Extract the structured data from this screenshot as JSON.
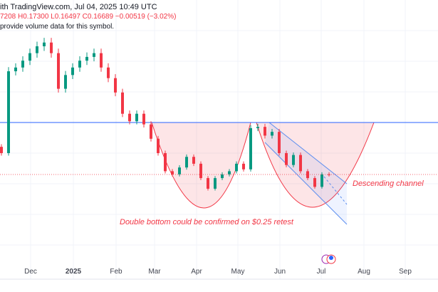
{
  "header": {
    "published": "ith TradingView.com, Jul 04, 2025 10:49 UTC",
    "ohlc": "7208  H0.17300  L0.16497  C0.16689  −0.00519 (−3.02%)",
    "notice": "provide volume data for this symbol."
  },
  "colors": {
    "up": "#089981",
    "down": "#f23645",
    "level": "#2962ff",
    "annotation": "#f23645"
  },
  "chart_data": {
    "type": "candlestick",
    "x_tick_labels": [
      "Dec",
      "2025",
      "Feb",
      "Mar",
      "Apr",
      "May",
      "Jun",
      "Jul",
      "Aug",
      "Sep"
    ],
    "closes": [
      0.201,
      0.332,
      0.338,
      0.349,
      0.361,
      0.372,
      0.378,
      0.361,
      0.304,
      0.326,
      0.338,
      0.349,
      0.355,
      0.361,
      0.338,
      0.321,
      0.298,
      0.264,
      0.252,
      0.264,
      0.247,
      0.224,
      0.201,
      0.172,
      0.167,
      0.178,
      0.195,
      0.184,
      0.161,
      0.144,
      0.161,
      0.167,
      0.172,
      0.184,
      0.175,
      0.241,
      0.243,
      0.229,
      0.235,
      0.201,
      0.182,
      0.198,
      0.172,
      0.161,
      0.147,
      0.167,
      0.1669
    ],
    "level": 0.25,
    "annotations": [
      "Double bottom could be confirmed on $0.25 retest",
      "Descending channel"
    ]
  }
}
